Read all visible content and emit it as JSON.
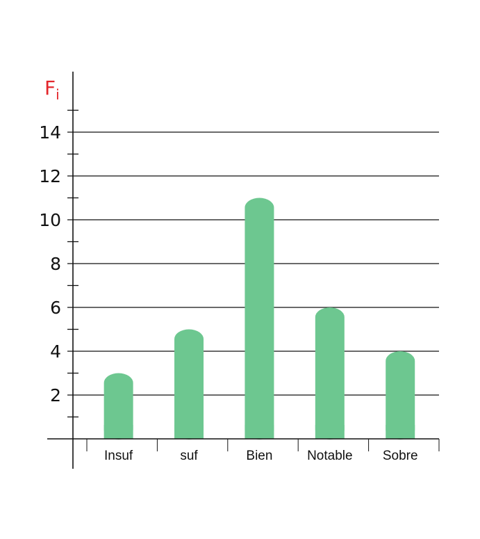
{
  "chart_data": {
    "type": "bar",
    "categories": [
      "Insuf",
      "suf",
      "Bien",
      "Notable",
      "Sobre"
    ],
    "values": [
      3,
      5,
      11,
      6,
      4
    ],
    "ylabel": {
      "main": "F",
      "sub": "i"
    },
    "ylim": [
      0,
      15
    ],
    "yticks": [
      2,
      4,
      6,
      8,
      10,
      12,
      14
    ],
    "grid": true,
    "colors": {
      "bar": "#6dc790",
      "ylabel": "#e3262b",
      "axis": "#111111"
    }
  }
}
